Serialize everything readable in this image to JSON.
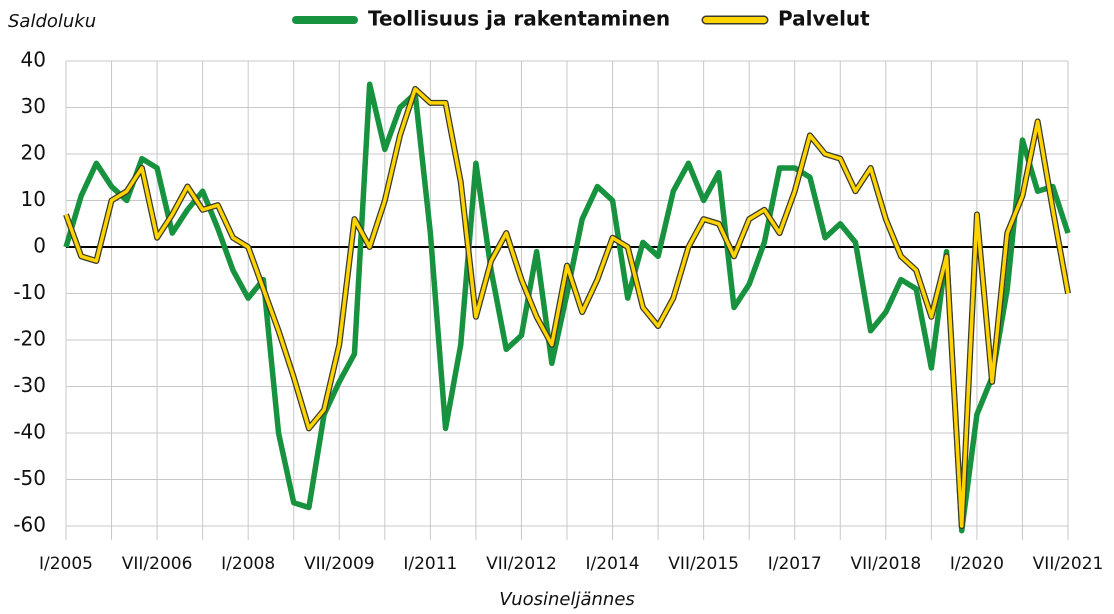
{
  "chart_data": {
    "type": "line",
    "y_axis_label": "Saldoluku",
    "x_axis_label": "Vuosineljännes",
    "categories": [
      "I/2005",
      null,
      null,
      null,
      null,
      null,
      "VII/2006",
      null,
      null,
      null,
      null,
      null,
      "I/2008",
      null,
      null,
      null,
      null,
      null,
      "VII/2009",
      null,
      null,
      null,
      null,
      null,
      "I/2011",
      null,
      null,
      null,
      null,
      null,
      "VII/2012",
      null,
      null,
      null,
      null,
      null,
      "I/2014",
      null,
      null,
      null,
      null,
      null,
      "VII/2015",
      null,
      null,
      null,
      null,
      null,
      "I/2017",
      null,
      null,
      null,
      null,
      null,
      "VII/2018",
      null,
      null,
      null,
      null,
      null,
      "I/2020",
      null,
      null,
      null,
      null,
      null,
      "VII/2021"
    ],
    "series": [
      {
        "name": "Teollisuus ja rakentaminen",
        "color": "#17923e",
        "values": [
          0,
          11,
          18,
          13,
          10,
          19,
          17,
          3,
          8,
          12,
          4,
          -5,
          -11,
          -7,
          -40,
          -55,
          -56,
          -36,
          -29,
          -23,
          35,
          21,
          30,
          33,
          3,
          -39,
          -21,
          18,
          -5,
          -22,
          -19,
          -1,
          -25,
          -10,
          6,
          13,
          10,
          -11,
          1,
          -2,
          12,
          18,
          10,
          16,
          -13,
          -8,
          1,
          17,
          17,
          15,
          2,
          5,
          1,
          -18,
          -14,
          -7,
          -9,
          -26,
          -1,
          -61,
          -36,
          -28,
          -9,
          23,
          12,
          13,
          3
        ]
      },
      {
        "name": "Palvelut",
        "color": "#ffd400",
        "values": [
          7,
          -2,
          -3,
          10,
          12,
          17,
          2,
          7,
          13,
          8,
          9,
          2,
          0,
          -9,
          -18,
          -28,
          -39,
          -35,
          -21,
          6,
          0,
          10,
          24,
          34,
          31,
          31,
          14,
          -15,
          -3,
          3,
          -7,
          -15,
          -21,
          -4,
          -14,
          -7,
          2,
          0,
          -13,
          -17,
          -11,
          0,
          6,
          5,
          -2,
          6,
          8,
          3,
          12,
          24,
          20,
          19,
          12,
          17,
          6,
          -2,
          -5,
          -15,
          -2,
          -60,
          7,
          -29,
          3,
          11,
          27,
          8,
          -10
        ]
      }
    ],
    "ylim": [
      -63,
      40
    ],
    "yticks": [
      -60,
      -50,
      -40,
      -30,
      -20,
      -10,
      0,
      10,
      20,
      30,
      40
    ],
    "grid": true
  }
}
